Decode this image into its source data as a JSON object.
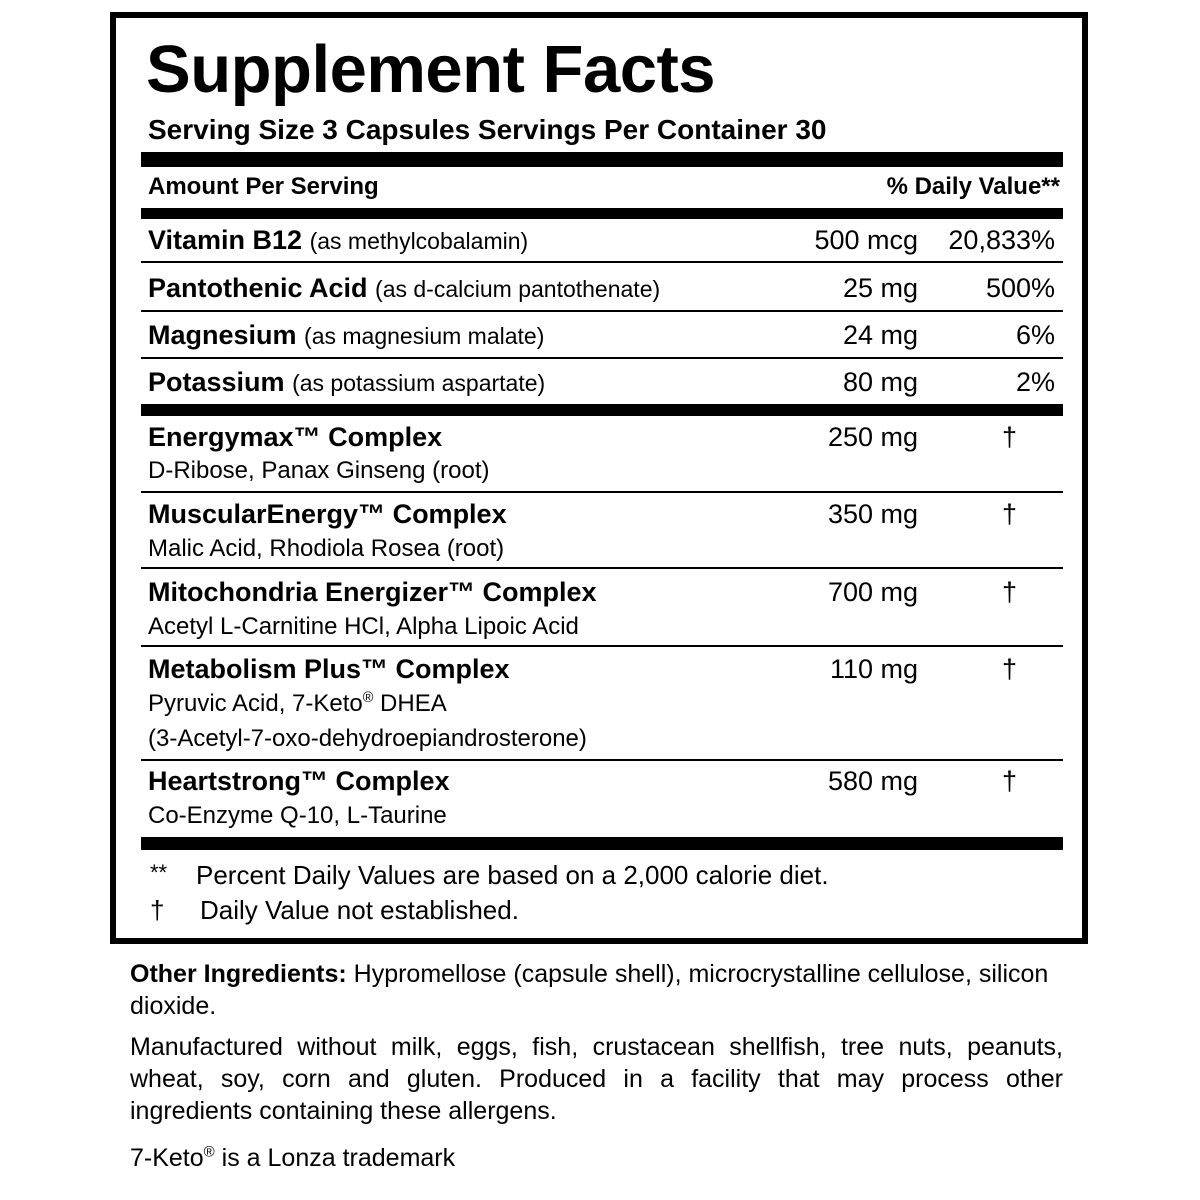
{
  "title": "Supplement Facts",
  "serving": "Serving Size 3 Capsules  Servings Per Container 30",
  "header": {
    "amount": "Amount Per Serving",
    "dv": "% Daily Value**"
  },
  "nutrients": [
    {
      "name": "Vitamin B12",
      "source": "(as methylcobalamin)",
      "amount": "500 mcg",
      "dv": "20,833%"
    },
    {
      "name": "Pantothenic Acid",
      "source": "(as d-calcium pantothenate)",
      "amount": "25 mg",
      "dv": "500%"
    },
    {
      "name": "Magnesium",
      "source": "(as magnesium malate)",
      "amount": "24 mg",
      "dv": "6%"
    },
    {
      "name": "Potassium",
      "source": "(as potassium aspartate)",
      "amount": "80 mg",
      "dv": "2%"
    }
  ],
  "complexes": [
    {
      "name": "Energymax™ Complex",
      "ingredients": "D-Ribose, Panax Ginseng (root)",
      "amount": "250 mg",
      "dv": "†"
    },
    {
      "name": "MuscularEnergy™ Complex",
      "ingredients": "Malic Acid, Rhodiola Rosea (root)",
      "amount": "350 mg",
      "dv": "†"
    },
    {
      "name": "Mitochondria Energizer™ Complex",
      "ingredients": "Acetyl L-Carnitine HCl, Alpha Lipoic Acid",
      "amount": "700 mg",
      "dv": "†"
    },
    {
      "name": "Metabolism Plus™ Complex",
      "ingredients_a": "Pyruvic Acid, 7-Keto",
      "ingredients_reg": "®",
      "ingredients_b": " DHEA",
      "ingredients_c": "(3-Acetyl-7-oxo-dehydroepiandrosterone)",
      "amount": "110 mg",
      "dv": "†"
    },
    {
      "name": "Heartstrong™ Complex",
      "ingredients": "Co-Enzyme Q-10, L-Taurine",
      "amount": "580 mg",
      "dv": "†"
    }
  ],
  "footnotes": [
    {
      "mark": "**",
      "text": "Percent Daily Values are based on a 2,000 calorie diet."
    },
    {
      "mark": "†",
      "text": "Daily Value not established."
    }
  ],
  "other": {
    "label": "Other Ingredients:",
    "text": " Hypromellose (capsule shell), microcrystalline cellulose, silicon dioxide."
  },
  "allergen": "Manufactured without milk, eggs, fish, crustacean shellfish, tree nuts, peanuts, wheat, soy, corn and gluten. Produced in a facility that may process other ingredients containing these allergens.",
  "trademark": {
    "a": "7-Keto",
    "reg": "®",
    "b": " is a Lonza trademark"
  }
}
